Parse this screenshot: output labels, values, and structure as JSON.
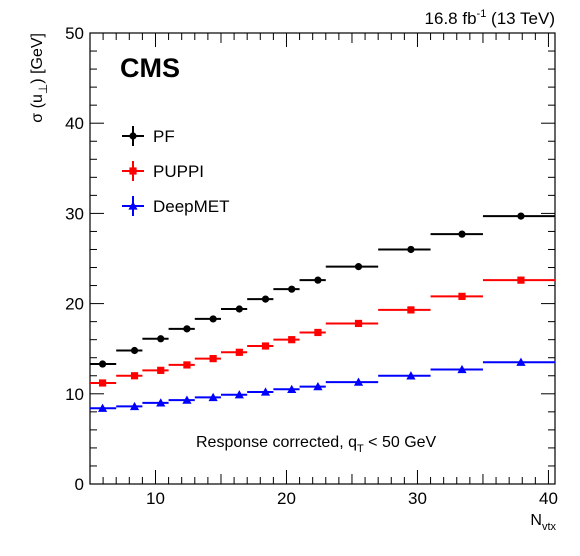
{
  "chart_data": {
    "type": "scatter",
    "experiment": "CMS",
    "lumi_text": "16.8 fb",
    "lumi_sup": "-1",
    "energy_text": "(13 TeV)",
    "annotation_main": "Response corrected, q",
    "annotation_sub": "T",
    "annotation_tail": "< 50 GeV",
    "xlabel_main": "N",
    "xlabel_sub": "vtx",
    "ylabel_main": "σ (u",
    "ylabel_sub": "⊥",
    "ylabel_tail": ") [GeV]",
    "xlim": [
      5,
      40.5
    ],
    "ylim": [
      0,
      50
    ],
    "x_ticks": [
      10,
      20,
      30,
      40
    ],
    "y_ticks": [
      0,
      10,
      20,
      30,
      40,
      50
    ],
    "grid": false,
    "legend_position": "top-left",
    "bins": [
      [
        5,
        7
      ],
      [
        7,
        9
      ],
      [
        9,
        11
      ],
      [
        11,
        13
      ],
      [
        13,
        15
      ],
      [
        15,
        17
      ],
      [
        17,
        19
      ],
      [
        19,
        21
      ],
      [
        21,
        23
      ],
      [
        23,
        27
      ],
      [
        27,
        31
      ],
      [
        31,
        35
      ],
      [
        35,
        40.5
      ]
    ],
    "x_centers": [
      5.96,
      8.4,
      10.4,
      12.4,
      14.4,
      16.4,
      18.4,
      20.4,
      22.4,
      25.5,
      29.5,
      33.4,
      37.9
    ],
    "series": [
      {
        "name": "PF",
        "color": "#000000",
        "marker": "circle",
        "values": [
          13.3,
          14.8,
          16.1,
          17.2,
          18.3,
          19.4,
          20.5,
          21.6,
          22.6,
          24.1,
          26.0,
          27.7,
          29.7
        ]
      },
      {
        "name": "PUPPI",
        "color": "#ff0000",
        "marker": "square",
        "values": [
          11.2,
          12.0,
          12.6,
          13.2,
          13.9,
          14.6,
          15.3,
          16.0,
          16.8,
          17.8,
          19.3,
          20.8,
          22.6
        ]
      },
      {
        "name": "DeepMET",
        "color": "#0000ff",
        "marker": "triangle",
        "values": [
          8.4,
          8.6,
          9.0,
          9.3,
          9.6,
          9.9,
          10.2,
          10.5,
          10.8,
          11.3,
          12.0,
          12.7,
          13.5
        ]
      }
    ]
  }
}
